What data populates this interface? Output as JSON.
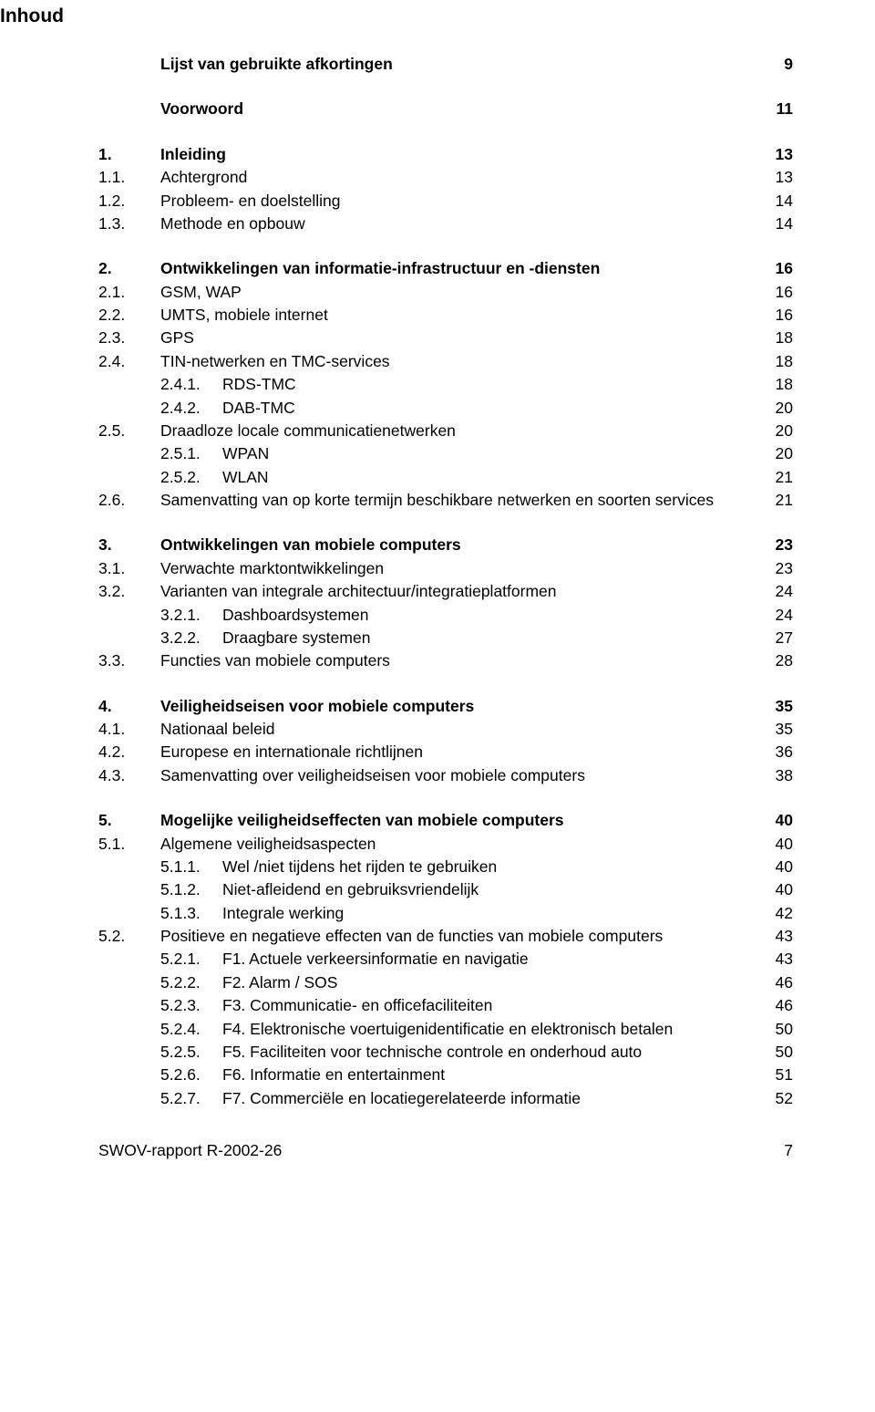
{
  "title": "Inhoud",
  "sections": [
    {
      "entries": [
        {
          "num": "",
          "label": "Lijst van gebruikte afkortingen",
          "page": "9",
          "bold": true,
          "indent": 0
        }
      ]
    },
    {
      "entries": [
        {
          "num": "",
          "label": "Voorwoord",
          "page": "11",
          "bold": true,
          "indent": 0
        }
      ]
    },
    {
      "entries": [
        {
          "num": "1.",
          "label": "Inleiding",
          "page": "13",
          "bold": true,
          "indent": 0
        },
        {
          "num": "1.1.",
          "label": "Achtergrond",
          "page": "13",
          "bold": false,
          "indent": 0
        },
        {
          "num": "1.2.",
          "label": "Probleem- en doelstelling",
          "page": "14",
          "bold": false,
          "indent": 0
        },
        {
          "num": "1.3.",
          "label": "Methode en opbouw",
          "page": "14",
          "bold": false,
          "indent": 0
        }
      ]
    },
    {
      "entries": [
        {
          "num": "2.",
          "label": "Ontwikkelingen van informatie-infrastructuur en -diensten",
          "page": "16",
          "bold": true,
          "indent": 0
        },
        {
          "num": "2.1.",
          "label": "GSM, WAP",
          "page": "16",
          "bold": false,
          "indent": 0
        },
        {
          "num": "2.2.",
          "label": "UMTS, mobiele internet",
          "page": "16",
          "bold": false,
          "indent": 0
        },
        {
          "num": "2.3.",
          "label": "GPS",
          "page": "18",
          "bold": false,
          "indent": 0
        },
        {
          "num": "2.4.",
          "label": "TIN-netwerken en TMC-services",
          "page": "18",
          "bold": false,
          "indent": 0
        },
        {
          "num": "2.4.1.",
          "label": "RDS-TMC",
          "page": "18",
          "bold": false,
          "indent": 1
        },
        {
          "num": "2.4.2.",
          "label": "DAB-TMC",
          "page": "20",
          "bold": false,
          "indent": 1
        },
        {
          "num": "2.5.",
          "label": "Draadloze locale communicatienetwerken",
          "page": "20",
          "bold": false,
          "indent": 0
        },
        {
          "num": "2.5.1.",
          "label": "WPAN",
          "page": "20",
          "bold": false,
          "indent": 1
        },
        {
          "num": "2.5.2.",
          "label": "WLAN",
          "page": "21",
          "bold": false,
          "indent": 1
        },
        {
          "num": "2.6.",
          "label": "Samenvatting van op korte termijn beschikbare netwerken en soorten services",
          "page": "21",
          "bold": false,
          "indent": 0
        }
      ]
    },
    {
      "entries": [
        {
          "num": "3.",
          "label": "Ontwikkelingen van mobiele computers",
          "page": "23",
          "bold": true,
          "indent": 0
        },
        {
          "num": "3.1.",
          "label": "Verwachte marktontwikkelingen",
          "page": "23",
          "bold": false,
          "indent": 0
        },
        {
          "num": "3.2.",
          "label": "Varianten van integrale architectuur/integratieplatformen",
          "page": "24",
          "bold": false,
          "indent": 0
        },
        {
          "num": "3.2.1.",
          "label": "Dashboardsystemen",
          "page": "24",
          "bold": false,
          "indent": 1
        },
        {
          "num": "3.2.2.",
          "label": "Draagbare systemen",
          "page": "27",
          "bold": false,
          "indent": 1
        },
        {
          "num": "3.3.",
          "label": "Functies van mobiele computers",
          "page": "28",
          "bold": false,
          "indent": 0
        }
      ]
    },
    {
      "entries": [
        {
          "num": "4.",
          "label": "Veiligheidseisen voor mobiele computers",
          "page": "35",
          "bold": true,
          "indent": 0
        },
        {
          "num": "4.1.",
          "label": "Nationaal beleid",
          "page": "35",
          "bold": false,
          "indent": 0
        },
        {
          "num": "4.2.",
          "label": "Europese en internationale richtlijnen",
          "page": "36",
          "bold": false,
          "indent": 0
        },
        {
          "num": "4.3.",
          "label": "Samenvatting over veiligheidseisen voor mobiele computers",
          "page": "38",
          "bold": false,
          "indent": 0
        }
      ]
    },
    {
      "entries": [
        {
          "num": "5.",
          "label": "Mogelijke veiligheidseffecten van mobiele computers",
          "page": "40",
          "bold": true,
          "indent": 0
        },
        {
          "num": "5.1.",
          "label": "Algemene veiligheidsaspecten",
          "page": "40",
          "bold": false,
          "indent": 0
        },
        {
          "num": "5.1.1.",
          "label": "Wel /niet tijdens het rijden te gebruiken",
          "page": "40",
          "bold": false,
          "indent": 1
        },
        {
          "num": "5.1.2.",
          "label": "Niet-afleidend en gebruiksvriendelijk",
          "page": "40",
          "bold": false,
          "indent": 1
        },
        {
          "num": "5.1.3.",
          "label": "Integrale werking",
          "page": "42",
          "bold": false,
          "indent": 1
        },
        {
          "num": "5.2.",
          "label": "Positieve en negatieve effecten van de functies van mobiele computers",
          "page": "43",
          "bold": false,
          "indent": 0
        },
        {
          "num": "5.2.1.",
          "label": "F1. Actuele verkeersinformatie en navigatie",
          "page": "43",
          "bold": false,
          "indent": 1
        },
        {
          "num": "5.2.2.",
          "label": "F2. Alarm / SOS",
          "page": "46",
          "bold": false,
          "indent": 1
        },
        {
          "num": "5.2.3.",
          "label": "F3. Communicatie- en officefaciliteiten",
          "page": "46",
          "bold": false,
          "indent": 1
        },
        {
          "num": "5.2.4.",
          "label": "F4. Elektronische voertuigenidentificatie en elektronisch betalen",
          "page": "50",
          "bold": false,
          "indent": 1
        },
        {
          "num": "5.2.5.",
          "label": "F5. Faciliteiten voor technische controle en onderhoud auto",
          "page": "50",
          "bold": false,
          "indent": 1
        },
        {
          "num": "5.2.6.",
          "label": "F6. Informatie en entertainment",
          "page": "51",
          "bold": false,
          "indent": 1
        },
        {
          "num": "5.2.7.",
          "label": "F7. Commerciële en locatiegerelateerde informatie",
          "page": "52",
          "bold": false,
          "indent": 1
        }
      ]
    }
  ],
  "footer": {
    "label": "SWOV-rapport R-2002-26",
    "page": "7"
  }
}
